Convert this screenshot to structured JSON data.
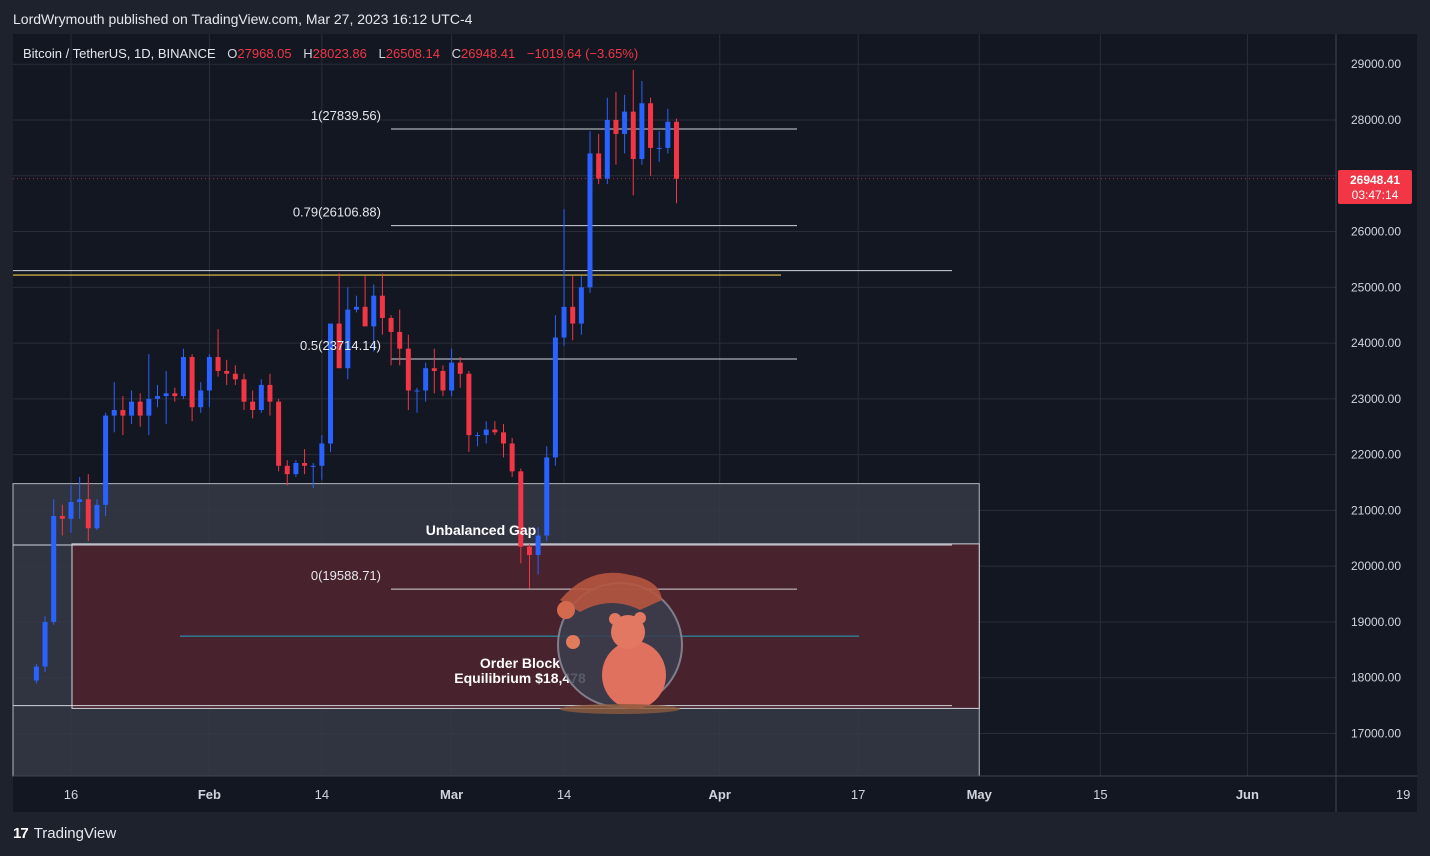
{
  "header": {
    "publisher_line": "LordWrymouth published on TradingView.com, Mar 27, 2023 16:12 UTC-4"
  },
  "legend": {
    "symbol": "Bitcoin / TetherUS, 1D, BINANCE",
    "o_label": "O",
    "o_value": "27968.05",
    "h_label": "H",
    "h_value": "28023.86",
    "l_label": "L",
    "l_value": "26508.14",
    "c_label": "C",
    "c_value": "26948.41",
    "change": "−1019.64 (−3.65%)"
  },
  "price_badge": {
    "price": "26948.41",
    "countdown": "03:47:14"
  },
  "footer": {
    "brand": "TradingView"
  },
  "colors": {
    "background": "#131722",
    "up": "#2962ff",
    "down": "#f23645",
    "fib_line": "#d1d4dc",
    "zone_gray": "#363a45",
    "zone_red": "#4a222b",
    "equilibrium_line": "#26a5c8",
    "resistance_yellow": "#e8c84a"
  },
  "chart_data": {
    "type": "candlestick",
    "title": "Bitcoin / TetherUS, 1D, BINANCE",
    "y_axis": {
      "ticks": [
        17000,
        18000,
        19000,
        20000,
        21000,
        22000,
        23000,
        24000,
        25000,
        26000,
        27000,
        28000,
        29000
      ],
      "tick_labels": [
        "17000.00",
        "18000.00",
        "19000.00",
        "20000.00",
        "21000.00",
        "22000.00",
        "23000.00",
        "24000.00",
        "25000.00",
        "26000.00",
        "",
        "28000.00",
        "29000.00"
      ]
    },
    "x_axis": {
      "tick_labels": [
        "16",
        "Feb",
        "14",
        "Mar",
        "14",
        "Apr",
        "17",
        "May",
        "15",
        "Jun",
        "19"
      ],
      "tick_dates": [
        "2023-01-16",
        "2023-02-01",
        "2023-02-14",
        "2023-03-01",
        "2023-03-14",
        "2023-04-01",
        "2023-04-17",
        "2023-05-01",
        "2023-05-15",
        "2023-06-01",
        "2023-06-19"
      ]
    },
    "current_price": 26948.41,
    "fib_levels": [
      {
        "label": "1(27839.56)",
        "price": 27839.56
      },
      {
        "label": "0.79(26106.88)",
        "price": 26106.88
      },
      {
        "label": "0.5(23714.14)",
        "price": 23714.14
      },
      {
        "label": "0(19588.71)",
        "price": 19588.71
      }
    ],
    "horizontal_lines": [
      25300,
      20380,
      17500
    ],
    "yellow_line": 25220,
    "zones": [
      {
        "label": "Unbalanced Gap",
        "top": 21480,
        "bottom": 16000
      },
      {
        "label": "Order Block",
        "top": 20400,
        "bottom": 17450
      }
    ],
    "equilibrium": {
      "label": "Equilibrium $18,478",
      "price": 18478
    },
    "candles": [
      {
        "date": "2023-01-12",
        "o": 17950,
        "h": 18250,
        "l": 17900,
        "c": 18200
      },
      {
        "date": "2023-01-13",
        "o": 18200,
        "h": 19100,
        "l": 18100,
        "c": 19000
      },
      {
        "date": "2023-01-14",
        "o": 19000,
        "h": 21200,
        "l": 18950,
        "c": 20900
      },
      {
        "date": "2023-01-15",
        "o": 20900,
        "h": 21100,
        "l": 20550,
        "c": 20850
      },
      {
        "date": "2023-01-16",
        "o": 20850,
        "h": 21450,
        "l": 20600,
        "c": 21150
      },
      {
        "date": "2023-01-17",
        "o": 21150,
        "h": 21600,
        "l": 20850,
        "c": 21200
      },
      {
        "date": "2023-01-18",
        "o": 21200,
        "h": 21650,
        "l": 20450,
        "c": 20680
      },
      {
        "date": "2023-01-19",
        "o": 20680,
        "h": 21200,
        "l": 20650,
        "c": 21100
      },
      {
        "date": "2023-01-20",
        "o": 21100,
        "h": 22750,
        "l": 20900,
        "c": 22700
      },
      {
        "date": "2023-01-21",
        "o": 22700,
        "h": 23300,
        "l": 22400,
        "c": 22800
      },
      {
        "date": "2023-01-22",
        "o": 22800,
        "h": 23050,
        "l": 22350,
        "c": 22700
      },
      {
        "date": "2023-01-23",
        "o": 22700,
        "h": 23150,
        "l": 22550,
        "c": 22950
      },
      {
        "date": "2023-01-24",
        "o": 22950,
        "h": 23100,
        "l": 22500,
        "c": 22700
      },
      {
        "date": "2023-01-25",
        "o": 22700,
        "h": 23800,
        "l": 22350,
        "c": 23000
      },
      {
        "date": "2023-01-26",
        "o": 23000,
        "h": 23250,
        "l": 22850,
        "c": 23050
      },
      {
        "date": "2023-01-27",
        "o": 23050,
        "h": 23500,
        "l": 22550,
        "c": 23100
      },
      {
        "date": "2023-01-28",
        "o": 23100,
        "h": 23200,
        "l": 22950,
        "c": 23050
      },
      {
        "date": "2023-01-29",
        "o": 23050,
        "h": 23900,
        "l": 23000,
        "c": 23750
      },
      {
        "date": "2023-01-30",
        "o": 23750,
        "h": 23800,
        "l": 22600,
        "c": 22850
      },
      {
        "date": "2023-01-31",
        "o": 22850,
        "h": 23300,
        "l": 22750,
        "c": 23150
      },
      {
        "date": "2023-02-01",
        "o": 23150,
        "h": 23800,
        "l": 22850,
        "c": 23750
      },
      {
        "date": "2023-02-02",
        "o": 23750,
        "h": 24250,
        "l": 23400,
        "c": 23500
      },
      {
        "date": "2023-02-03",
        "o": 23500,
        "h": 23700,
        "l": 23250,
        "c": 23450
      },
      {
        "date": "2023-02-04",
        "o": 23450,
        "h": 23600,
        "l": 23250,
        "c": 23350
      },
      {
        "date": "2023-02-05",
        "o": 23350,
        "h": 23450,
        "l": 22800,
        "c": 22950
      },
      {
        "date": "2023-02-06",
        "o": 22950,
        "h": 23150,
        "l": 22650,
        "c": 22800
      },
      {
        "date": "2023-02-07",
        "o": 22800,
        "h": 23350,
        "l": 22750,
        "c": 23250
      },
      {
        "date": "2023-02-08",
        "o": 23250,
        "h": 23450,
        "l": 22700,
        "c": 22950
      },
      {
        "date": "2023-02-09",
        "o": 22950,
        "h": 23000,
        "l": 21700,
        "c": 21800
      },
      {
        "date": "2023-02-10",
        "o": 21800,
        "h": 21900,
        "l": 21450,
        "c": 21650
      },
      {
        "date": "2023-02-11",
        "o": 21650,
        "h": 21900,
        "l": 21600,
        "c": 21850
      },
      {
        "date": "2023-02-12",
        "o": 21850,
        "h": 22100,
        "l": 21650,
        "c": 21800
      },
      {
        "date": "2023-02-13",
        "o": 21800,
        "h": 21850,
        "l": 21400,
        "c": 21800
      },
      {
        "date": "2023-02-14",
        "o": 21800,
        "h": 22350,
        "l": 21550,
        "c": 22200
      },
      {
        "date": "2023-02-15",
        "o": 22200,
        "h": 24350,
        "l": 22050,
        "c": 24350
      },
      {
        "date": "2023-02-16",
        "o": 24350,
        "h": 25250,
        "l": 23550,
        "c": 23550
      },
      {
        "date": "2023-02-17",
        "o": 23550,
        "h": 25000,
        "l": 23350,
        "c": 24600
      },
      {
        "date": "2023-02-18",
        "o": 24600,
        "h": 24850,
        "l": 24550,
        "c": 24650
      },
      {
        "date": "2023-02-19",
        "o": 24650,
        "h": 25200,
        "l": 24350,
        "c": 24300
      },
      {
        "date": "2023-02-20",
        "o": 24300,
        "h": 25050,
        "l": 23850,
        "c": 24850
      },
      {
        "date": "2023-02-21",
        "o": 24850,
        "h": 25250,
        "l": 24150,
        "c": 24450
      },
      {
        "date": "2023-02-22",
        "o": 24450,
        "h": 24500,
        "l": 23600,
        "c": 24200
      },
      {
        "date": "2023-02-23",
        "o": 24200,
        "h": 24600,
        "l": 23600,
        "c": 23900
      },
      {
        "date": "2023-02-24",
        "o": 23900,
        "h": 24150,
        "l": 22800,
        "c": 23150
      },
      {
        "date": "2023-02-25",
        "o": 23150,
        "h": 23200,
        "l": 22750,
        "c": 23150
      },
      {
        "date": "2023-02-26",
        "o": 23150,
        "h": 23650,
        "l": 22950,
        "c": 23550
      },
      {
        "date": "2023-02-27",
        "o": 23550,
        "h": 23900,
        "l": 23100,
        "c": 23500
      },
      {
        "date": "2023-02-28",
        "o": 23500,
        "h": 23600,
        "l": 23050,
        "c": 23150
      },
      {
        "date": "2023-03-01",
        "o": 23150,
        "h": 23900,
        "l": 23050,
        "c": 23650
      },
      {
        "date": "2023-03-02",
        "o": 23650,
        "h": 23750,
        "l": 23200,
        "c": 23450
      },
      {
        "date": "2023-03-03",
        "o": 23450,
        "h": 23500,
        "l": 22050,
        "c": 22350
      },
      {
        "date": "2023-03-04",
        "o": 22350,
        "h": 22400,
        "l": 22150,
        "c": 22350
      },
      {
        "date": "2023-03-05",
        "o": 22350,
        "h": 22600,
        "l": 22200,
        "c": 22450
      },
      {
        "date": "2023-03-06",
        "o": 22450,
        "h": 22600,
        "l": 22350,
        "c": 22400
      },
      {
        "date": "2023-03-07",
        "o": 22400,
        "h": 22550,
        "l": 21950,
        "c": 22200
      },
      {
        "date": "2023-03-08",
        "o": 22200,
        "h": 22300,
        "l": 21600,
        "c": 21700
      },
      {
        "date": "2023-03-09",
        "o": 21700,
        "h": 21750,
        "l": 20050,
        "c": 20350
      },
      {
        "date": "2023-03-10",
        "o": 20350,
        "h": 20400,
        "l": 19600,
        "c": 20200
      },
      {
        "date": "2023-03-11",
        "o": 20200,
        "h": 20700,
        "l": 19850,
        "c": 20550
      },
      {
        "date": "2023-03-12",
        "o": 20550,
        "h": 22150,
        "l": 20450,
        "c": 21950
      },
      {
        "date": "2023-03-13",
        "o": 21950,
        "h": 24500,
        "l": 21800,
        "c": 24100
      },
      {
        "date": "2023-03-14",
        "o": 24100,
        "h": 26400,
        "l": 23950,
        "c": 24650
      },
      {
        "date": "2023-03-15",
        "o": 24650,
        "h": 25200,
        "l": 24050,
        "c": 24350
      },
      {
        "date": "2023-03-16",
        "o": 24350,
        "h": 25200,
        "l": 24150,
        "c": 25000
      },
      {
        "date": "2023-03-17",
        "o": 25000,
        "h": 27800,
        "l": 24900,
        "c": 27400
      },
      {
        "date": "2023-03-18",
        "o": 27400,
        "h": 27750,
        "l": 26850,
        "c": 26950
      },
      {
        "date": "2023-03-19",
        "o": 26950,
        "h": 28400,
        "l": 26850,
        "c": 28000
      },
      {
        "date": "2023-03-20",
        "o": 28000,
        "h": 28500,
        "l": 27200,
        "c": 27750
      },
      {
        "date": "2023-03-21",
        "o": 27750,
        "h": 28450,
        "l": 27400,
        "c": 28150
      },
      {
        "date": "2023-03-22",
        "o": 28150,
        "h": 28900,
        "l": 26650,
        "c": 27300
      },
      {
        "date": "2023-03-23",
        "o": 27300,
        "h": 28700,
        "l": 27200,
        "c": 28300
      },
      {
        "date": "2023-03-24",
        "o": 28300,
        "h": 28400,
        "l": 27000,
        "c": 27500
      },
      {
        "date": "2023-03-25",
        "o": 27500,
        "h": 27800,
        "l": 27250,
        "c": 27500
      },
      {
        "date": "2023-03-26",
        "o": 27500,
        "h": 28200,
        "l": 27400,
        "c": 27968.05
      },
      {
        "date": "2023-03-27",
        "o": 27968.05,
        "h": 28023.86,
        "l": 26508.14,
        "c": 26948.41
      }
    ]
  }
}
